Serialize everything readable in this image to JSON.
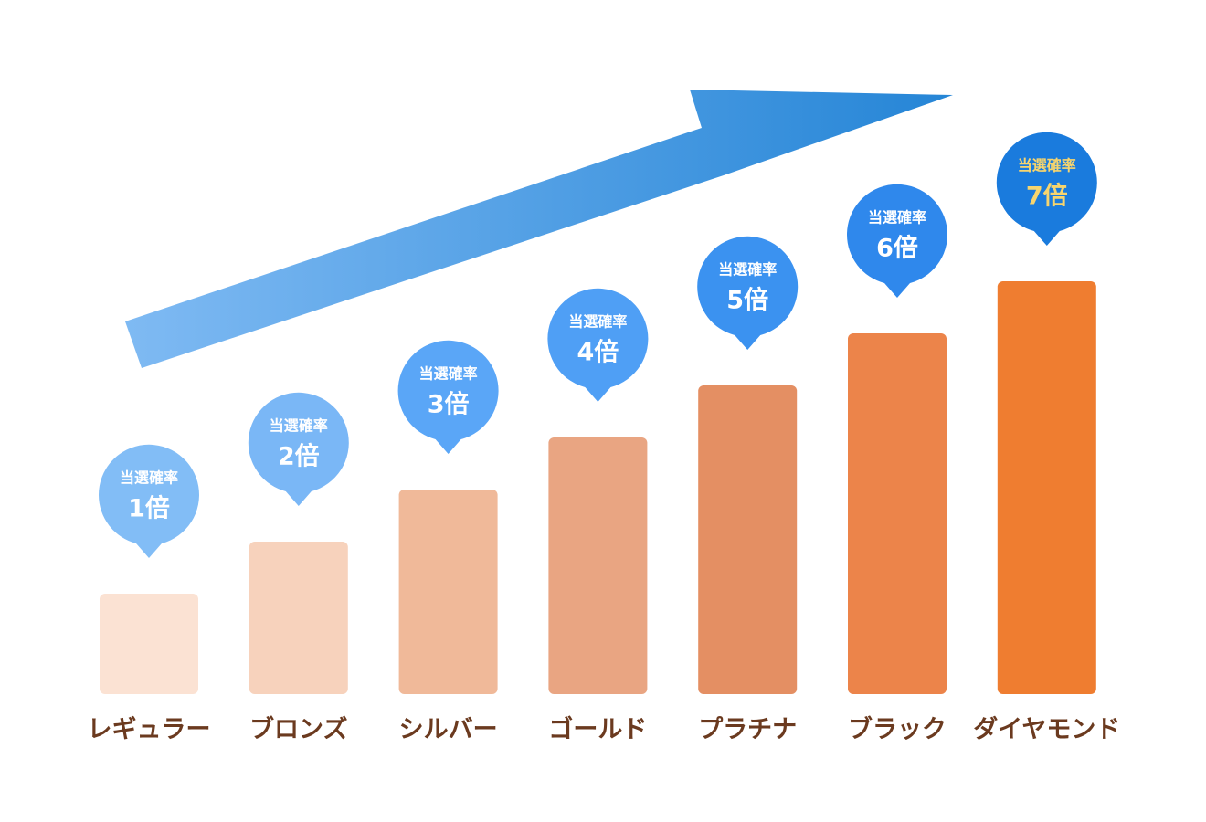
{
  "chart_data": {
    "type": "bar",
    "categories": [
      "レギュラー",
      "ブロンズ",
      "シルバー",
      "ゴールド",
      "プラチナ",
      "ブラック",
      "ダイヤモンド"
    ],
    "values": [
      1,
      2,
      3,
      4,
      5,
      6,
      7
    ],
    "value_labels": [
      "1倍",
      "2倍",
      "3倍",
      "4倍",
      "5倍",
      "6倍",
      "7倍"
    ],
    "label_title": "当選確率",
    "colors": [
      "#fbe2d3",
      "#f7d2bc",
      "#f0b999",
      "#e9a582",
      "#e48f63",
      "#ec844a",
      "#ef7d30"
    ],
    "label_colors": [
      "#82bdf6",
      "#7ab7f6",
      "#5aa6f7",
      "#4f9ff5",
      "#3b92f0",
      "#2f88ec",
      "#1a7bdd"
    ],
    "label_text_colors": [
      "#ffffff",
      "#ffffff",
      "#ffffff",
      "#ffffff",
      "#ffffff",
      "#ffffff",
      "#f7d56e"
    ]
  }
}
